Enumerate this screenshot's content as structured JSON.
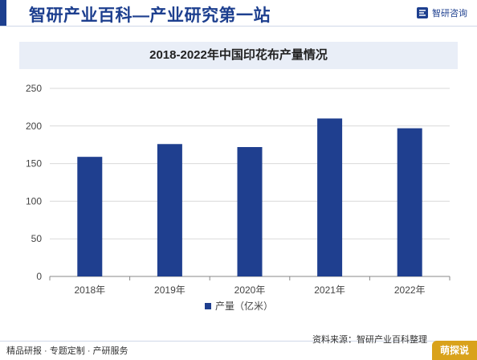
{
  "header": {
    "title": "智研产业百科—产业研究第一站",
    "logo_text": "智研咨询",
    "accent_color": "#1d3f8f",
    "logo_icon": "zhiyan-logo-icon"
  },
  "chart_data": {
    "type": "bar",
    "title": "2018-2022年中国印花布产量情况",
    "categories": [
      "2018年",
      "2019年",
      "2020年",
      "2021年",
      "2022年"
    ],
    "series": [
      {
        "name": "产量（亿米）",
        "values": [
          159,
          176,
          172,
          210,
          197
        ],
        "color": "#1f3f8f"
      }
    ],
    "xlabel": "",
    "ylabel": "",
    "ylim": [
      0,
      250
    ],
    "yticks": [
      0,
      50,
      100,
      150,
      200,
      250
    ],
    "grid": true,
    "legend_position": "bottom"
  },
  "footer": {
    "left_text": "精品研报 · 专题定制 · 产研服务",
    "right_text": "资料来源：智研产业百科整理",
    "badge_text": "萌探说"
  }
}
